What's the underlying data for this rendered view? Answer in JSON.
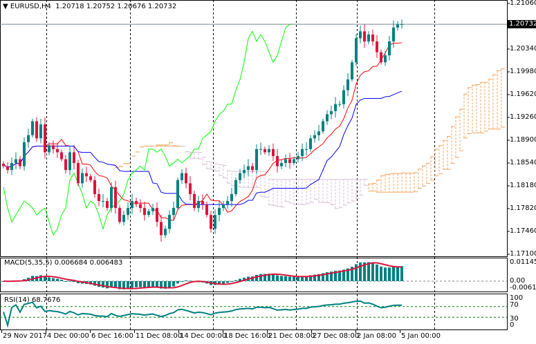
{
  "header": {
    "symbol": "EURUSD,H4",
    "open": "1.20718",
    "high": "1.20752",
    "low": "1.20676",
    "close": "1.20732"
  },
  "current_price": "1.20732",
  "price_axis": [
    "1.21060",
    "1.20340",
    "1.19980",
    "1.19620",
    "1.19260",
    "1.18900",
    "1.18540",
    "1.18180",
    "1.17820",
    "1.17460",
    "1.17100"
  ],
  "macd": {
    "label": "MACD(5,35,5) 0.006684 0.006483",
    "axis": [
      "0.011456",
      "0.00",
      "-0.00615"
    ]
  },
  "rsi": {
    "label": "RSI(14) 68.7676",
    "axis": [
      "100",
      "70",
      "30",
      "0"
    ]
  },
  "time_axis": [
    "29 Nov 2017",
    "4 Dec 00:00",
    "6 Dec 16:00",
    "11 Dec 08:00",
    "14 Dec 00:00",
    "18 Dec 16:00",
    "21 Dec 08:00",
    "27 Dec 08:00",
    "2 Jan 08:00",
    "5 Jan 00:00"
  ],
  "colors": {
    "bull": "#008080",
    "bear": "#dc143c",
    "tenkan": "#ff0000",
    "kijun": "#0000ff",
    "chikou": "#00ff00",
    "cloud_up": "#f4a460",
    "cloud_down": "#d8bfd8",
    "macd_signal": "#dc143c",
    "rsi": "#008080",
    "rsi_levels": "#008000"
  },
  "chart_data": {
    "type": "candlestick",
    "symbol": "EURUSD",
    "timeframe": "H4",
    "ylim": [
      1.171,
      1.2106
    ],
    "closes": [
      1.1849,
      1.1843,
      1.1854,
      1.186,
      1.1849,
      1.1887,
      1.1898,
      1.192,
      1.1893,
      1.1915,
      1.1871,
      1.1882,
      1.1876,
      1.1871,
      1.186,
      1.1843,
      1.1871,
      1.1854,
      1.1822,
      1.1838,
      1.1833,
      1.1827,
      1.1805,
      1.1794,
      1.1794,
      1.1783,
      1.1816,
      1.1783,
      1.1761,
      1.1772,
      1.1783,
      1.1794,
      1.1789,
      1.1783,
      1.1772,
      1.1778,
      1.1783,
      1.1761,
      1.174,
      1.175,
      1.1772,
      1.1783,
      1.1827,
      1.1838,
      1.1822,
      1.1805,
      1.1783,
      1.1794,
      1.1789,
      1.1772,
      1.175,
      1.1772,
      1.1783,
      1.1789,
      1.1794,
      1.1805,
      1.1827,
      1.1838,
      1.1843,
      1.1849,
      1.1843,
      1.1876,
      1.1876,
      1.1871,
      1.1876,
      1.1865,
      1.1849,
      1.1854,
      1.186,
      1.1854,
      1.186,
      1.1865,
      1.1876,
      1.1876,
      1.1893,
      1.1898,
      1.1904,
      1.192,
      1.1931,
      1.1936,
      1.1947,
      1.1947,
      1.1969,
      1.1986,
      1.2013,
      1.2051,
      1.2062,
      1.2046,
      1.2057,
      1.2046,
      1.2029,
      1.2013,
      1.2024,
      1.2046,
      1.2068,
      1.2073,
      1.20732
    ],
    "indicators": [
      "Ichimoku(9,26,52)",
      "MACD(5,35,5)",
      "RSI(14)"
    ]
  }
}
